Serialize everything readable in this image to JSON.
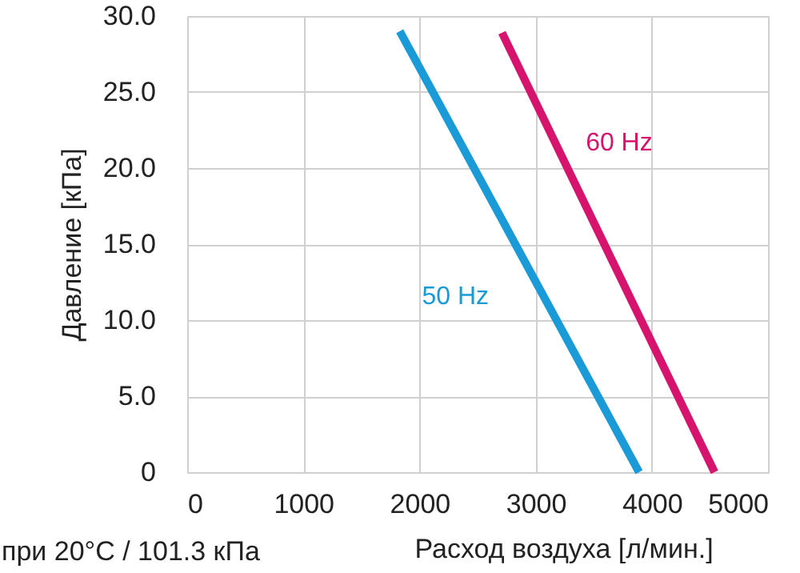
{
  "chart_data": {
    "type": "line",
    "xlabel": "Расход воздуха [л/мин.]",
    "ylabel": "Давление [кПа]",
    "annotations": [
      "при 20°C / 101.3 кПа"
    ],
    "series": [
      {
        "name": "50 Hz",
        "color": "#1a9ad6",
        "x": [
          1830,
          3890
        ],
        "values": [
          29.0,
          0
        ]
      },
      {
        "name": "60 Hz",
        "color": "#d6146e",
        "x": [
          2710,
          4540
        ],
        "values": [
          28.9,
          0
        ]
      }
    ],
    "xlim": [
      0,
      5000
    ],
    "xticks": [
      0,
      1000,
      2000,
      3000,
      4000,
      5000
    ],
    "ylim": [
      0,
      30
    ],
    "yticks": [
      0,
      {
        "value": 5,
        "label": "5.0"
      },
      {
        "value": 10,
        "label": "10.0"
      },
      {
        "value": 15,
        "label": "15.0"
      },
      {
        "value": 20,
        "label": "20.0"
      },
      {
        "value": 25,
        "label": "25.0"
      },
      {
        "value": 30,
        "label": "30.0"
      }
    ],
    "grid": true,
    "marker": "none",
    "line_style": "solid"
  }
}
